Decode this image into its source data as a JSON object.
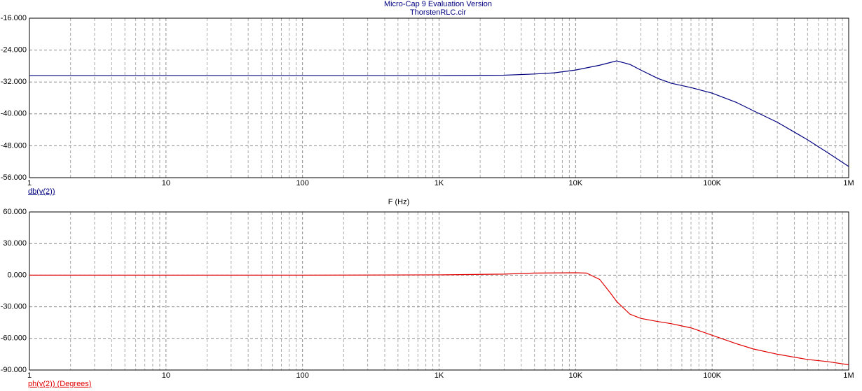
{
  "chart_data": [
    {
      "type": "line",
      "title": "Micro-Cap 9 Evaluation Version",
      "subtitle": "ThorstenRLC.cir",
      "xlabel": "F (Hz)",
      "xscale": "log",
      "grid": true,
      "x": [
        1,
        10,
        100,
        1000,
        3000,
        5000,
        7000,
        10000,
        15000,
        20000,
        25000,
        30000,
        40000,
        50000,
        70000,
        100000,
        150000,
        200000,
        300000,
        500000,
        700000,
        1000000
      ],
      "series": [
        {
          "name": "db(v(2))",
          "color": "#000080",
          "values": [
            -30.4,
            -30.4,
            -30.4,
            -30.4,
            -30.3,
            -30.0,
            -29.7,
            -29.0,
            -27.8,
            -26.7,
            -27.6,
            -29.0,
            -31.1,
            -32.3,
            -33.4,
            -34.8,
            -37.1,
            -39.2,
            -42.1,
            -46.5,
            -49.7,
            -53.2
          ]
        }
      ],
      "xlim": [
        1,
        1000000
      ],
      "xticks": [
        1,
        10,
        100,
        {
          "value": 1000,
          "label": "1K"
        },
        {
          "value": 10000,
          "label": "10K"
        },
        {
          "value": 100000,
          "label": "100K"
        },
        {
          "value": 1000000,
          "label": "1M"
        }
      ],
      "ylim": [
        -56,
        -16
      ],
      "yticks": [
        {
          "value": -16,
          "label": "-16.000"
        },
        {
          "value": -24,
          "label": "-24.000"
        },
        {
          "value": -32,
          "label": "-32.000"
        },
        {
          "value": -40,
          "label": "-40.000"
        },
        {
          "value": -48,
          "label": "-48.000"
        },
        {
          "value": -56,
          "label": "-56.000"
        }
      ]
    },
    {
      "type": "line",
      "xscale": "log",
      "grid": true,
      "x": [
        1,
        10,
        100,
        1000,
        3000,
        5000,
        10000,
        12000,
        15000,
        18000,
        20000,
        25000,
        30000,
        40000,
        50000,
        70000,
        100000,
        150000,
        200000,
        300000,
        500000,
        700000,
        1000000
      ],
      "series": [
        {
          "name": "ph(v(2)) (Degrees)",
          "color": "#e00000",
          "values": [
            0,
            0,
            0,
            0.3,
            1,
            2,
            2.3,
            2,
            -4,
            -17,
            -25,
            -37,
            -41,
            -44,
            -46,
            -50,
            -57,
            -65,
            -70,
            -75,
            -80,
            -82,
            -85
          ]
        }
      ],
      "xlim": [
        1,
        1000000
      ],
      "xticks": [
        1,
        10,
        100,
        {
          "value": 1000,
          "label": "1K"
        },
        {
          "value": 10000,
          "label": "10K"
        },
        {
          "value": 100000,
          "label": "100K"
        },
        {
          "value": 1000000,
          "label": "1M"
        }
      ],
      "ylim": [
        -90,
        60
      ],
      "yticks": [
        {
          "value": 60,
          "label": "60.000"
        },
        {
          "value": 30,
          "label": "30.000"
        },
        {
          "value": 0,
          "label": "0.000"
        },
        {
          "value": -30,
          "label": "-30.000"
        },
        {
          "value": -60,
          "label": "-60.000"
        },
        {
          "value": -90,
          "label": "-90.000"
        }
      ]
    }
  ]
}
